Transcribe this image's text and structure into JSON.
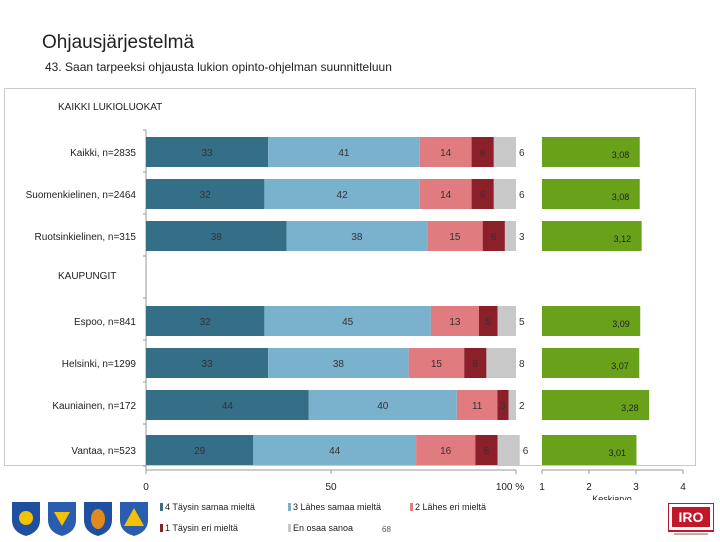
{
  "header": {
    "title": "Ohjausjärjestelmä",
    "subtitle": "43. Saan tarpeeksi ohjausta lukion opinto-ohjelman suunnitteluun"
  },
  "footer": {
    "page_number": "68",
    "logo_text": "IRO"
  },
  "colors": {
    "series": [
      "#356e87",
      "#7ab1cc",
      "#e07b7f",
      "#8b1f2a",
      "#c8c8c8"
    ],
    "mean_bar": "#6aa11a"
  },
  "chart_data": {
    "type": "bar",
    "orientation": "horizontal-stacked",
    "sections": [
      {
        "label": "KAIKKI LUKIOLUOKAT",
        "before_row": 0
      },
      {
        "label": "KAUPUNGIT",
        "before_row": 3
      }
    ],
    "categories": [
      "Kaikki, n=2835",
      "Suomenkielinen, n=2464",
      "Ruotsinkielinen, n=315",
      "Espoo, n=841",
      "Helsinki, n=1299",
      "Kauniainen, n=172",
      "Vantaa, n=523"
    ],
    "series": [
      {
        "name": "4 Täysin samaa mieltä",
        "values": [
          33,
          32,
          38,
          32,
          33,
          44,
          29
        ]
      },
      {
        "name": "3 Lähes samaa mieltä",
        "values": [
          41,
          42,
          38,
          45,
          38,
          40,
          44
        ]
      },
      {
        "name": "2 Lähes eri mieltä",
        "values": [
          14,
          14,
          15,
          13,
          15,
          11,
          16
        ]
      },
      {
        "name": "1 Täysin eri mieltä",
        "values": [
          6,
          6,
          6,
          5,
          6,
          3,
          6
        ]
      },
      {
        "name": "En osaa sanoa",
        "values": [
          6,
          6,
          3,
          5,
          8,
          2,
          6
        ]
      }
    ],
    "segment_labels": [
      [
        "33",
        "41",
        "14",
        "6",
        "6"
      ],
      [
        "32",
        "42",
        "14",
        "6",
        "6"
      ],
      [
        "38",
        "38",
        "15",
        "6",
        "3"
      ],
      [
        "32",
        "45",
        "13",
        "5",
        "5"
      ],
      [
        "33",
        "38",
        "15",
        "6",
        "8"
      ],
      [
        "44",
        "40",
        "11",
        "3",
        "2"
      ],
      [
        "29",
        "44",
        "16",
        "6",
        "6"
      ]
    ],
    "xaxis": {
      "ticks": [
        "0",
        "50",
        "100 %"
      ],
      "range": [
        0,
        100
      ]
    },
    "mean": {
      "xlabel": "Keskiarvo",
      "ticks": [
        "1",
        "2",
        "3",
        "4"
      ],
      "range": [
        1,
        4
      ],
      "values": [
        3.08,
        3.08,
        3.12,
        3.09,
        3.07,
        3.28,
        3.01
      ],
      "labels": [
        "3,08",
        "3,08",
        "3,12",
        "3,09",
        "3,07",
        "3,28",
        "3,01"
      ]
    },
    "legend_position": "bottom"
  }
}
